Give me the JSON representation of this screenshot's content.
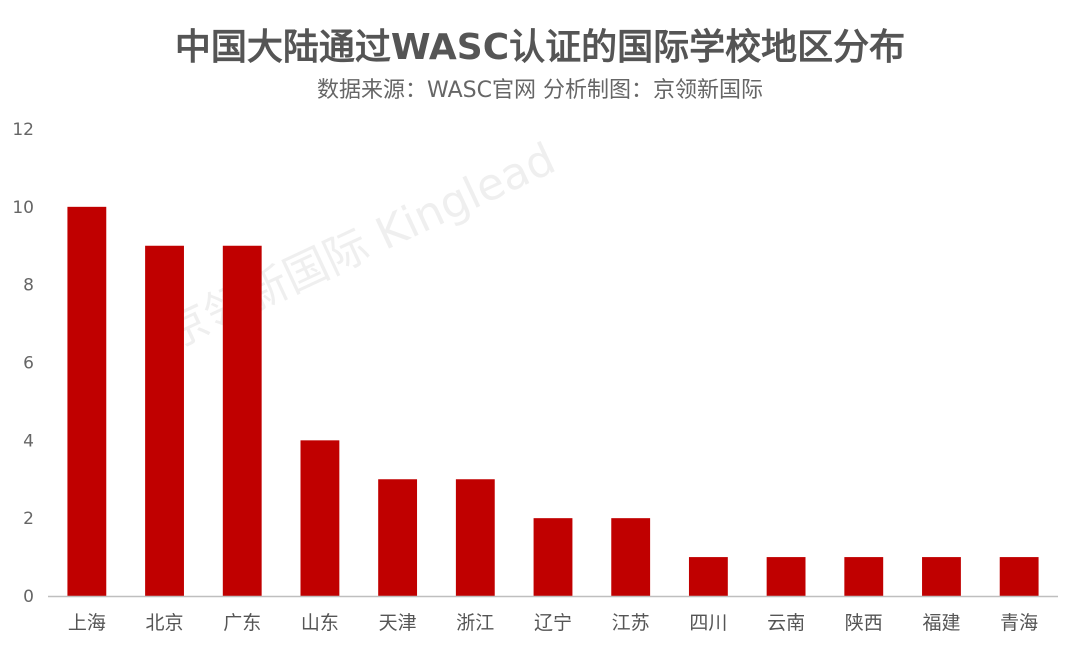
{
  "title": "中国大陆通过WASC认证的国际学校地区分布",
  "subtitle": "数据来源：WASC官网    分析制图：京领新国际",
  "watermark": "京领新国际 Kinglead",
  "colors": {
    "bar": "#c00000",
    "axis": "#bfbfbf"
  },
  "chart_data": {
    "type": "bar",
    "title": "中国大陆通过WASC认证的国际学校地区分布",
    "categories": [
      "上海",
      "北京",
      "广东",
      "山东",
      "天津",
      "浙江",
      "辽宁",
      "江苏",
      "四川",
      "云南",
      "陕西",
      "福建",
      "青海"
    ],
    "values": [
      10,
      9,
      9,
      4,
      3,
      3,
      2,
      2,
      1,
      1,
      1,
      1,
      1
    ],
    "ylim": [
      0,
      12
    ],
    "yticks": [
      0,
      2,
      4,
      6,
      8,
      10,
      12
    ],
    "grid": false,
    "xlabel": "",
    "ylabel": ""
  }
}
